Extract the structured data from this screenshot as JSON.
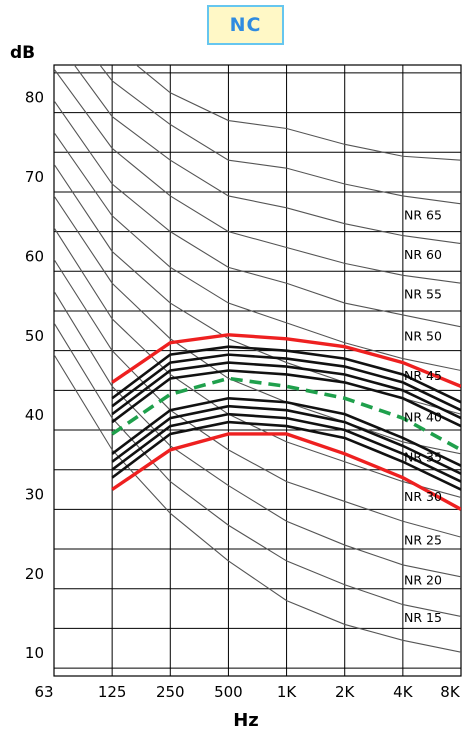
{
  "chart_data": {
    "type": "line",
    "title": "NC",
    "ylabel": "dB",
    "xlabel": "Hz",
    "categories": [
      "63",
      "125",
      "250",
      "500",
      "1K",
      "2K",
      "4K",
      "8K"
    ],
    "y_ticks": [
      10,
      20,
      30,
      40,
      50,
      60,
      70,
      80
    ],
    "ylim": [
      7,
      84
    ],
    "grid": true,
    "nr_curves": [
      {
        "label": "NR 15",
        "values": [
          47.5,
          35.5,
          27.5,
          21.5,
          16.5,
          13.5,
          11.5,
          10
        ]
      },
      {
        "label": "NR 20",
        "values": [
          51.5,
          39.5,
          31.5,
          26,
          21.5,
          18.5,
          16,
          14.5
        ]
      },
      {
        "label": "NR 25",
        "values": [
          55.5,
          43.5,
          36,
          31,
          26.5,
          23.5,
          21,
          19.5
        ]
      },
      {
        "label": "NR 30",
        "values": [
          59.5,
          48,
          40.5,
          35.5,
          31.5,
          29,
          26.5,
          24.5
        ]
      },
      {
        "label": "NR 35",
        "values": [
          63.5,
          52,
          45,
          40,
          36.5,
          34,
          31.5,
          29.5
        ]
      },
      {
        "label": "NR 40",
        "values": [
          67.5,
          56.5,
          49.5,
          44.5,
          41.5,
          39,
          36.5,
          35
        ]
      },
      {
        "label": "NR 45",
        "values": [
          71.5,
          60.5,
          54,
          49.5,
          46.5,
          44,
          42,
          40
        ]
      },
      {
        "label": "NR 50",
        "values": [
          75.5,
          65,
          58.5,
          54,
          51.5,
          49,
          47,
          45.5
        ]
      },
      {
        "label": "NR 55",
        "values": [
          79.5,
          69,
          63,
          58.5,
          56.5,
          54,
          52.5,
          51
        ]
      },
      {
        "label": "NR 60",
        "values": [
          83.5,
          73.5,
          67.5,
          63,
          61,
          59,
          57.5,
          56.5
        ]
      },
      {
        "label": "NR 65",
        "values": [
          87.5,
          77.5,
          72,
          67.5,
          66,
          64,
          62.5,
          61.5
        ]
      },
      {
        "label": "",
        "values": [
          91.5,
          82,
          76.5,
          72,
          71,
          69,
          67.5,
          66.5
        ]
      },
      {
        "label": "",
        "values": [
          95.5,
          86.5,
          80.5,
          77,
          76,
          74,
          72.5,
          72
        ]
      }
    ],
    "band_upper": [
      44,
      49,
      50,
      49.5,
      48.5,
      46.5,
      43.5
    ],
    "band_lower": [
      30.5,
      35.5,
      37.5,
      37.5,
      35,
      32,
      28
    ],
    "band_inner": [
      [
        42,
        47.5,
        48.5,
        48,
        47,
        45,
        41.5
      ],
      [
        41,
        46.5,
        47.5,
        47,
        46,
        44,
        40.5
      ],
      [
        40,
        45.5,
        46.5,
        46,
        45,
        43,
        39.5
      ],
      [
        39,
        44.5,
        45.5,
        45,
        44,
        42,
        38.5
      ],
      [
        35,
        40.5,
        42,
        41.5,
        40,
        37,
        33.5
      ],
      [
        34,
        39.5,
        41,
        40.5,
        39,
        36,
        32.5
      ],
      [
        33,
        38.5,
        40,
        39.5,
        38,
        35,
        31.5
      ],
      [
        32,
        37.5,
        39,
        38.5,
        37,
        34,
        30.5
      ]
    ],
    "band_median": [
      37.5,
      42.5,
      44.5,
      43.5,
      42,
      39.5,
      35.5
    ],
    "colors": {
      "nr": "#555555",
      "grid": "#000000",
      "band_edge": "#ee2020",
      "band_inner": "#111111",
      "median": "#1fa04c",
      "title_bg": "#fff8c6",
      "title_border": "#66c6ef",
      "title_text": "#2f8be0"
    }
  }
}
